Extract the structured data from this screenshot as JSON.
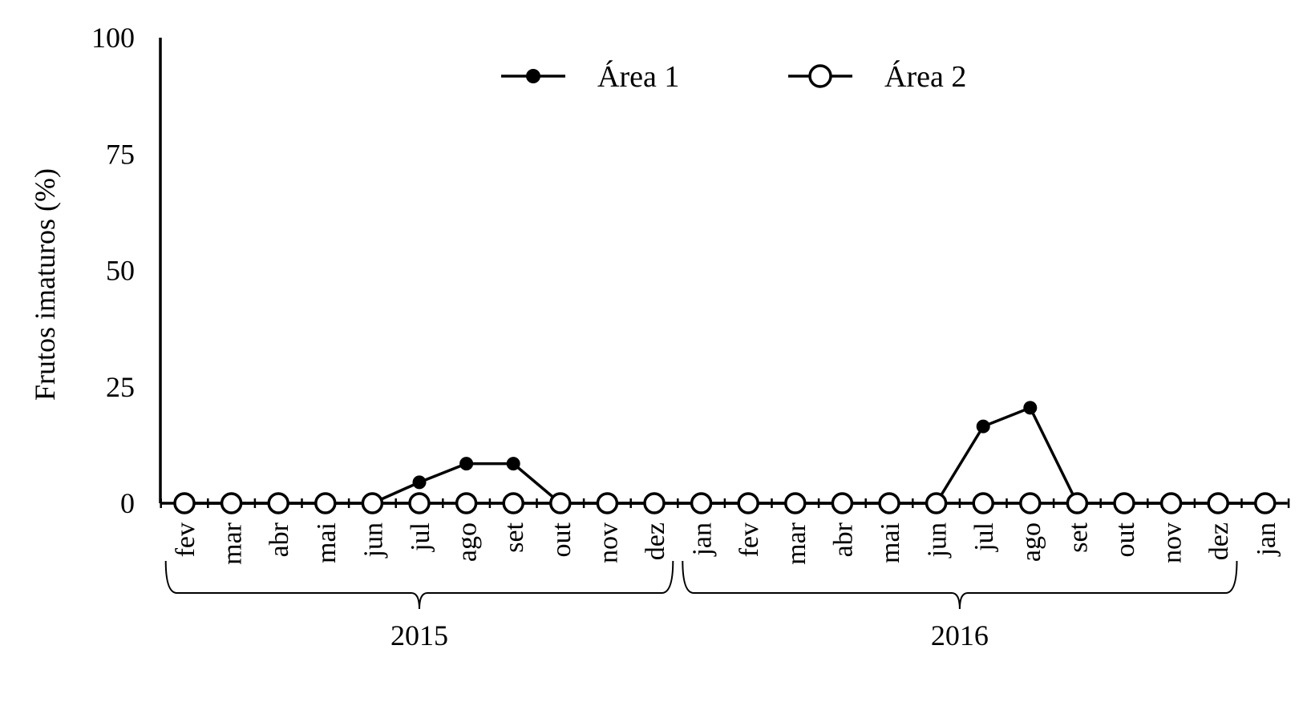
{
  "chart_data": {
    "type": "line",
    "title": "",
    "ylabel": "Frutos imaturos (%)",
    "xlabel": "",
    "ylim": [
      0,
      100
    ],
    "yticks": [
      0,
      25,
      50,
      75,
      100
    ],
    "ytick_labels": [
      "0",
      "25",
      "50",
      "75",
      "100"
    ],
    "categories": [
      "fev",
      "mar",
      "abr",
      "mai",
      "jun",
      "jul",
      "ago",
      "set",
      "out",
      "nov",
      "dez",
      "jan",
      "fev",
      "mar",
      "abr",
      "mai",
      "jun",
      "jul",
      "ago",
      "set",
      "out",
      "nov",
      "dez",
      "jan"
    ],
    "year_groups": [
      {
        "label": "2015",
        "start_index": 0,
        "end_index": 10
      },
      {
        "label": "2016",
        "start_index": 11,
        "end_index": 22
      }
    ],
    "series": [
      {
        "name": "Área 1",
        "marker": "filled-circle",
        "values": [
          0,
          0,
          0,
          0,
          0,
          4.5,
          8.5,
          8.5,
          0,
          0,
          0,
          0,
          0,
          0,
          0,
          0,
          0,
          16.5,
          20.5,
          0,
          0,
          0,
          0,
          0
        ]
      },
      {
        "name": "Área 2",
        "marker": "open-circle",
        "values": [
          0,
          0,
          0,
          0,
          0,
          0,
          0,
          0,
          0,
          0,
          0,
          0,
          0,
          0,
          0,
          0,
          0,
          0,
          0,
          0,
          0,
          0,
          0,
          0
        ]
      }
    ],
    "legend": "top-center",
    "grid": false
  }
}
